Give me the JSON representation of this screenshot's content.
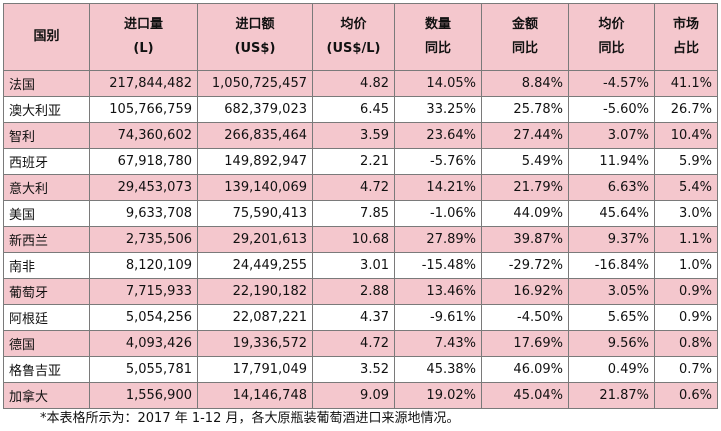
{
  "table": {
    "headers": [
      {
        "line1": "国别",
        "line2": ""
      },
      {
        "line1": "进口量",
        "line2": "(L)"
      },
      {
        "line1": "进口额",
        "line2": "(US$)"
      },
      {
        "line1": "均价",
        "line2": "(US$/L)"
      },
      {
        "line1": "数量",
        "line2": "同比"
      },
      {
        "line1": "金额",
        "line2": "同比"
      },
      {
        "line1": "均价",
        "line2": "同比"
      },
      {
        "line1": "市场",
        "line2": "占比"
      }
    ],
    "rows": [
      [
        "法国",
        "217,844,482",
        "1,050,725,457",
        "4.82",
        "14.05%",
        "8.84%",
        "-4.57%",
        "41.1%"
      ],
      [
        "澳大利亚",
        "105,766,759",
        "682,379,023",
        "6.45",
        "33.25%",
        "25.78%",
        "-5.60%",
        "26.7%"
      ],
      [
        "智利",
        "74,360,602",
        "266,835,464",
        "3.59",
        "23.64%",
        "27.44%",
        "3.07%",
        "10.4%"
      ],
      [
        "西班牙",
        "67,918,780",
        "149,892,947",
        "2.21",
        "-5.76%",
        "5.49%",
        "11.94%",
        "5.9%"
      ],
      [
        "意大利",
        "29,453,073",
        "139,140,069",
        "4.72",
        "14.21%",
        "21.79%",
        "6.63%",
        "5.4%"
      ],
      [
        "美国",
        "9,633,708",
        "75,590,413",
        "7.85",
        "-1.06%",
        "44.09%",
        "45.64%",
        "3.0%"
      ],
      [
        "新西兰",
        "2,735,506",
        "29,201,613",
        "10.68",
        "27.89%",
        "39.87%",
        "9.37%",
        "1.1%"
      ],
      [
        "南非",
        "8,120,109",
        "24,449,255",
        "3.01",
        "-15.48%",
        "-29.72%",
        "-16.84%",
        "1.0%"
      ],
      [
        "葡萄牙",
        "7,715,933",
        "22,190,182",
        "2.88",
        "13.46%",
        "16.92%",
        "3.05%",
        "0.9%"
      ],
      [
        "阿根廷",
        "5,054,256",
        "22,087,221",
        "4.37",
        "-9.61%",
        "-4.50%",
        "5.65%",
        "0.9%"
      ],
      [
        "德国",
        "4,093,426",
        "19,336,572",
        "4.72",
        "7.43%",
        "17.69%",
        "9.56%",
        "0.8%"
      ],
      [
        "格鲁吉亚",
        "5,055,781",
        "17,791,049",
        "3.52",
        "45.38%",
        "46.09%",
        "0.49%",
        "0.7%"
      ],
      [
        "加拿大",
        "1,556,900",
        "14,146,748",
        "9.09",
        "19.02%",
        "45.04%",
        "21.87%",
        "0.6%"
      ]
    ],
    "colors": {
      "header_bg": "#f4c7cd",
      "stripe_bg": "#f4c7cd",
      "border": "#7a7a7a"
    }
  },
  "footnote": "*本表格所示为：2017 年 1-12 月，各大原瓶装葡萄酒进口来源地情况。"
}
